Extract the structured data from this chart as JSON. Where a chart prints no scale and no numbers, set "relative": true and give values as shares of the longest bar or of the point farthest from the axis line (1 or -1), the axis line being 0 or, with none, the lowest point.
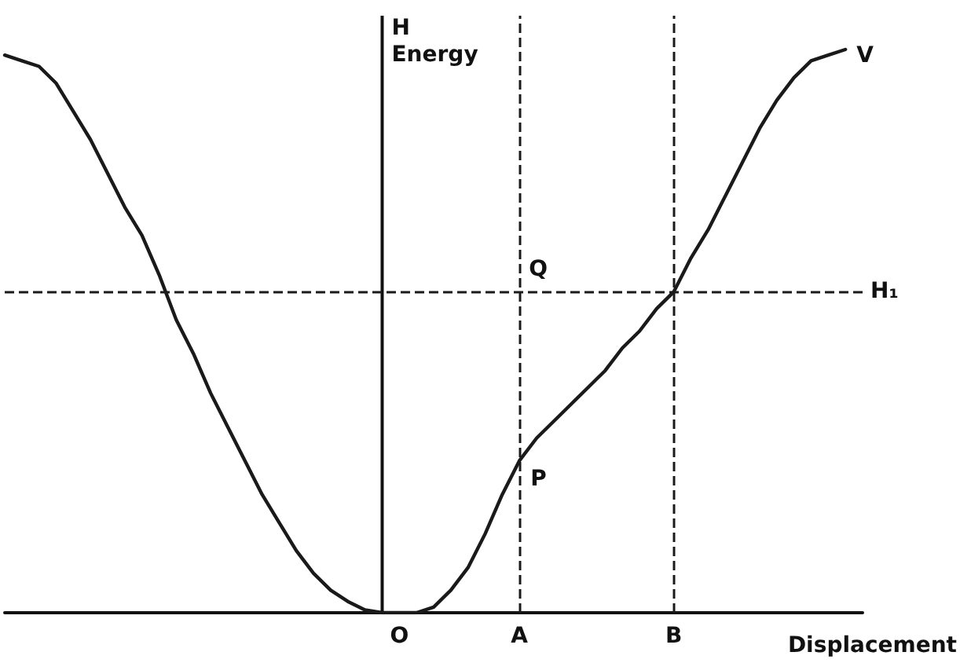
{
  "chart_data": {
    "type": "line",
    "relative": true,
    "xlabel": "Displacement",
    "ylabel": "Energy",
    "categories": [
      null,
      null,
      null,
      null,
      null,
      null,
      null,
      null,
      null,
      null,
      null,
      null,
      null,
      null,
      null,
      null,
      null,
      null,
      null,
      null,
      null,
      null,
      null,
      "O",
      null,
      null,
      null,
      null,
      null,
      null,
      "A",
      null,
      null,
      null,
      null,
      null,
      null,
      null,
      null,
      "B",
      null,
      null,
      null,
      null,
      null,
      null,
      null,
      null,
      null,
      null,
      null
    ],
    "series": [
      {
        "color": "#1a1a1a",
        "values": [
          0.99,
          0.98,
          0.97,
          0.94,
          0.89,
          0.84,
          0.78,
          0.72,
          0.67,
          0.6,
          0.52,
          0.46,
          0.39,
          0.33,
          0.27,
          0.21,
          0.16,
          0.11,
          0.07,
          0.04,
          0.02,
          0.005,
          0,
          0,
          0,
          0.01,
          0.04,
          0.08,
          0.14,
          0.21,
          0.27,
          0.31,
          0.34,
          0.37,
          0.4,
          0.43,
          0.47,
          0.5,
          0.54,
          0.57,
          0.63,
          0.68,
          0.74,
          0.8,
          0.86,
          0.91,
          0.95,
          0.98,
          0.99,
          1.0,
          null
        ]
      }
    ],
    "ref_lines": [
      {
        "axis": "y",
        "value": 0.57,
        "label": "H₁",
        "line_style": "dashed",
        "color": "#1a1a1a"
      },
      {
        "axis": "x",
        "value": "A",
        "label": null,
        "line_style": "dashed",
        "color": "#1a1a1a"
      },
      {
        "axis": "x",
        "value": "B",
        "label": null,
        "line_style": "dashed",
        "color": "#1a1a1a"
      }
    ],
    "annotations": [
      "H",
      "V",
      {
        "text": "Q",
        "x": "A",
        "y": 0.57
      },
      {
        "text": "P",
        "x": "A",
        "y": 0.27
      }
    ],
    "grid": false,
    "marker": "none",
    "line_style": "solid"
  }
}
